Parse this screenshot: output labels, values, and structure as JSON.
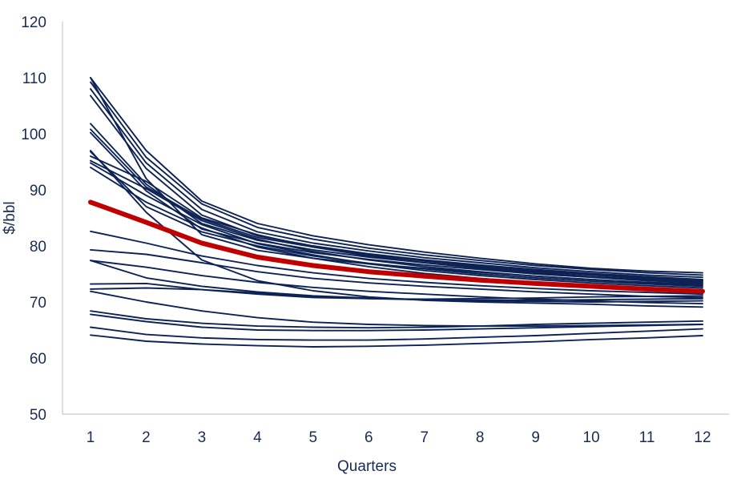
{
  "chart_data": {
    "type": "line",
    "title": "",
    "xlabel": "Quarters",
    "ylabel": "$/bbl",
    "x": [
      1,
      2,
      3,
      4,
      5,
      6,
      7,
      8,
      9,
      10,
      11,
      12
    ],
    "ylim": [
      50,
      120
    ],
    "yticks": [
      50,
      60,
      70,
      80,
      90,
      100,
      110,
      120
    ],
    "grid": false,
    "legend": "none",
    "colors": {
      "series": "#0d2355",
      "highlight": "#c00000",
      "axis": "#c8c8c8",
      "text": "#1a2b55"
    },
    "series": [
      {
        "values": [
          110.0,
          97.0,
          88.0,
          84.0,
          81.8,
          80.2,
          78.9,
          77.8,
          76.8,
          76.0,
          75.5,
          75.2
        ]
      },
      {
        "values": [
          109.2,
          95.8,
          87.5,
          83.3,
          81.2,
          79.6,
          78.4,
          77.4,
          76.5,
          75.8,
          75.2,
          74.8
        ]
      },
      {
        "values": [
          108.0,
          94.8,
          86.5,
          82.5,
          80.5,
          79.1,
          77.9,
          77.0,
          76.1,
          75.4,
          74.8,
          74.4
        ]
      },
      {
        "values": [
          106.8,
          93.8,
          85.5,
          81.8,
          80.0,
          78.6,
          77.5,
          76.6,
          75.8,
          75.1,
          74.5,
          74.0
        ]
      },
      {
        "values": [
          101.8,
          91.0,
          84.0,
          81.0,
          79.3,
          78.0,
          77.0,
          76.2,
          75.4,
          74.8,
          74.2,
          73.8
        ]
      },
      {
        "values": [
          100.8,
          90.5,
          84.8,
          81.5,
          79.8,
          78.4,
          77.3,
          76.4,
          75.6,
          74.9,
          74.3,
          73.9
        ]
      },
      {
        "values": [
          100.2,
          89.8,
          83.0,
          80.5,
          78.8,
          77.6,
          76.6,
          75.8,
          75.0,
          74.4,
          73.8,
          73.4
        ]
      },
      {
        "values": [
          110.0,
          92.0,
          82.0,
          79.2,
          77.8,
          76.8,
          76.0,
          75.3,
          74.6,
          74.0,
          73.5,
          73.2
        ]
      },
      {
        "values": [
          96.8,
          87.0,
          82.5,
          80.0,
          78.2,
          76.9,
          75.9,
          75.0,
          74.3,
          73.7,
          73.2,
          72.8
        ]
      },
      {
        "values": [
          96.0,
          91.5,
          85.0,
          82.0,
          79.8,
          78.2,
          77.0,
          76.0,
          75.2,
          74.5,
          74.0,
          73.6
        ]
      },
      {
        "values": [
          95.2,
          90.2,
          84.5,
          81.2,
          79.0,
          77.5,
          76.3,
          75.4,
          74.6,
          74.0,
          73.4,
          73.0
        ]
      },
      {
        "values": [
          94.8,
          89.0,
          83.8,
          80.4,
          78.4,
          76.8,
          75.6,
          74.7,
          74.0,
          73.4,
          72.9,
          72.5
        ]
      },
      {
        "values": [
          94.0,
          87.8,
          83.2,
          79.8,
          77.8,
          76.3,
          75.1,
          74.2,
          73.5,
          72.9,
          72.4,
          72.0
        ]
      },
      {
        "values": [
          82.6,
          80.5,
          78.2,
          76.5,
          75.2,
          74.2,
          73.5,
          72.9,
          72.4,
          72.0,
          71.7,
          71.4
        ]
      },
      {
        "values": [
          79.3,
          78.5,
          77.0,
          75.4,
          74.2,
          73.4,
          72.8,
          72.3,
          71.8,
          71.4,
          71.0,
          70.8
        ]
      },
      {
        "values": [
          77.4,
          76.2,
          74.7,
          73.5,
          72.6,
          71.9,
          71.4,
          70.9,
          70.5,
          70.2,
          69.9,
          69.7
        ]
      },
      {
        "values": [
          97.0,
          86.0,
          77.5,
          73.8,
          72.0,
          70.9,
          70.3,
          70.0,
          69.8,
          69.6,
          69.3,
          69.1
        ]
      },
      {
        "values": [
          77.4,
          74.3,
          72.8,
          71.8,
          71.1,
          70.7,
          70.4,
          70.2,
          70.1,
          70.0,
          70.1,
          70.2
        ]
      },
      {
        "values": [
          73.2,
          73.3,
          72.2,
          71.4,
          70.8,
          70.6,
          70.4,
          70.3,
          70.3,
          70.4,
          70.5,
          70.6
        ]
      },
      {
        "values": [
          72.3,
          72.5,
          72.2,
          71.6,
          71.0,
          70.6,
          70.5,
          70.6,
          70.7,
          70.9,
          71.0,
          71.1
        ]
      },
      {
        "values": [
          71.9,
          70.0,
          68.4,
          67.2,
          66.4,
          66.0,
          65.8,
          65.7,
          65.7,
          65.8,
          65.9,
          66.0
        ]
      },
      {
        "values": [
          68.4,
          67.0,
          66.2,
          65.7,
          65.5,
          65.4,
          65.5,
          65.7,
          66.0,
          66.2,
          66.4,
          66.6
        ]
      },
      {
        "values": [
          67.8,
          66.5,
          65.5,
          65.0,
          64.9,
          64.9,
          65.0,
          65.2,
          65.4,
          65.6,
          65.8,
          66.0
        ]
      },
      {
        "values": [
          65.5,
          64.2,
          63.6,
          63.3,
          63.2,
          63.2,
          63.4,
          63.7,
          64.0,
          64.4,
          64.8,
          65.2
        ]
      },
      {
        "values": [
          64.1,
          63.0,
          62.5,
          62.2,
          62.0,
          62.1,
          62.3,
          62.6,
          62.9,
          63.3,
          63.6,
          64.0
        ]
      }
    ],
    "highlight": {
      "values": [
        87.8,
        84.2,
        80.5,
        78.0,
        76.5,
        75.4,
        74.6,
        73.9,
        73.3,
        72.8,
        72.3,
        71.9
      ]
    }
  }
}
